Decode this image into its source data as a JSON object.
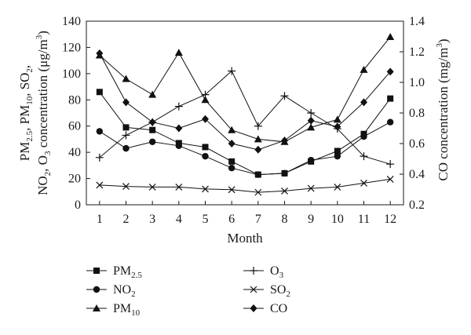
{
  "chart_data": {
    "type": "line",
    "x": [
      1,
      2,
      3,
      4,
      5,
      6,
      7,
      8,
      9,
      10,
      11,
      12
    ],
    "x_tick_labels": [
      "1",
      "2",
      "3",
      "4",
      "5",
      "6",
      "7",
      "8",
      "9",
      "10",
      "11",
      "12"
    ],
    "xlabel": "Month",
    "xlim": [
      0.5,
      12.5
    ],
    "ylim_left": [
      0,
      140
    ],
    "y_ticks_left": [
      "0",
      "20",
      "40",
      "60",
      "80",
      "100",
      "120",
      "140"
    ],
    "ylim_right": [
      0.2,
      1.4
    ],
    "y_ticks_right": [
      "0.2",
      "0.4",
      "0.6",
      "0.8",
      "1.0",
      "1.2",
      "1.4"
    ],
    "ylabel_left_line1": [
      "PM",
      "2.5",
      ", PM",
      "10",
      ", SO",
      "2",
      ","
    ],
    "ylabel_left_line2": [
      "NO",
      "2",
      ", O",
      "3",
      " concentration (",
      "μg/m",
      "3",
      ")"
    ],
    "ylabel_right": [
      "CO concentration (mg/m",
      "3",
      ")"
    ],
    "grid": false,
    "legend_placement": "bottom",
    "series": [
      {
        "name": "PM2.5",
        "label_main": "PM",
        "label_sub": "2.5",
        "axis": "left",
        "marker": "square",
        "values": [
          86,
          59,
          57,
          47,
          44,
          33,
          23,
          24,
          33,
          41,
          54,
          81
        ]
      },
      {
        "name": "NO2",
        "label_main": "NO",
        "label_sub": "2",
        "axis": "left",
        "marker": "circle",
        "values": [
          56,
          43,
          48,
          45,
          37,
          28,
          23,
          24,
          34,
          37,
          52,
          63
        ]
      },
      {
        "name": "PM10",
        "label_main": "PM",
        "label_sub": "10",
        "axis": "left",
        "marker": "triangle",
        "values": [
          114,
          96,
          84,
          116,
          80,
          57,
          50,
          48,
          59,
          65,
          103,
          128
        ]
      },
      {
        "name": "O3",
        "label_main": "O",
        "label_sub": "3",
        "axis": "left",
        "marker": "plus",
        "values": [
          36,
          53,
          63,
          75,
          84,
          102,
          60,
          83,
          70,
          58,
          37,
          31
        ]
      },
      {
        "name": "SO2",
        "label_main": "SO",
        "label_sub": "2",
        "axis": "left",
        "marker": "cross",
        "values": [
          15,
          14,
          13.5,
          13.5,
          12,
          11.5,
          9.5,
          10.5,
          12.5,
          13.5,
          16.5,
          19.5
        ]
      },
      {
        "name": "CO",
        "label_main": "CO",
        "label_sub": "",
        "axis": "right",
        "marker": "diamond",
        "values": [
          1.19,
          0.87,
          0.74,
          0.7,
          0.76,
          0.6,
          0.56,
          0.62,
          0.75,
          0.71,
          0.87,
          1.07
        ]
      }
    ]
  }
}
